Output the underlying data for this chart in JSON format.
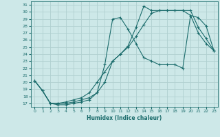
{
  "title": "",
  "xlabel": "Humidex (Indice chaleur)",
  "background_color": "#cde8e8",
  "grid_color": "#b0d0d0",
  "line_color": "#1a6b6b",
  "xlim": [
    -0.5,
    23.5
  ],
  "ylim": [
    16.5,
    31.5
  ],
  "xticks": [
    0,
    1,
    2,
    3,
    4,
    5,
    6,
    7,
    8,
    9,
    10,
    11,
    12,
    13,
    14,
    15,
    16,
    17,
    18,
    19,
    20,
    21,
    22,
    23
  ],
  "yticks": [
    17,
    18,
    19,
    20,
    21,
    22,
    23,
    24,
    25,
    26,
    27,
    28,
    29,
    30,
    31
  ],
  "curve1_x": [
    0,
    1,
    2,
    3,
    4,
    5,
    6,
    7,
    8,
    9,
    10,
    11,
    12,
    13,
    14,
    15,
    16,
    17,
    18,
    19,
    20,
    21,
    22,
    23
  ],
  "curve1_y": [
    20.2,
    18.8,
    17.0,
    16.8,
    16.8,
    17.0,
    17.2,
    17.5,
    18.5,
    20.0,
    23.0,
    24.0,
    25.2,
    27.8,
    30.8,
    30.2,
    30.2,
    30.2,
    30.2,
    30.2,
    30.2,
    27.8,
    26.2,
    24.5
  ],
  "curve2_x": [
    0,
    1,
    2,
    3,
    4,
    5,
    6,
    7,
    8,
    9,
    10,
    11,
    12,
    13,
    14,
    15,
    16,
    17,
    18,
    19,
    20,
    21,
    22,
    23
  ],
  "curve2_y": [
    20.2,
    18.8,
    17.0,
    17.0,
    17.0,
    17.2,
    17.5,
    17.8,
    18.5,
    22.5,
    29.0,
    29.2,
    27.5,
    25.5,
    23.5,
    23.0,
    22.5,
    22.5,
    22.5,
    22.0,
    29.5,
    27.0,
    25.5,
    24.5
  ],
  "curve3_x": [
    0,
    1,
    2,
    3,
    4,
    5,
    6,
    7,
    8,
    9,
    10,
    11,
    12,
    13,
    14,
    15,
    16,
    17,
    18,
    19,
    20,
    21,
    22,
    23
  ],
  "curve3_y": [
    20.2,
    18.8,
    17.0,
    17.0,
    17.2,
    17.5,
    17.8,
    18.5,
    20.0,
    21.5,
    23.0,
    24.0,
    25.0,
    26.5,
    28.2,
    29.8,
    30.2,
    30.2,
    30.2,
    30.2,
    29.5,
    29.2,
    28.0,
    24.5
  ]
}
